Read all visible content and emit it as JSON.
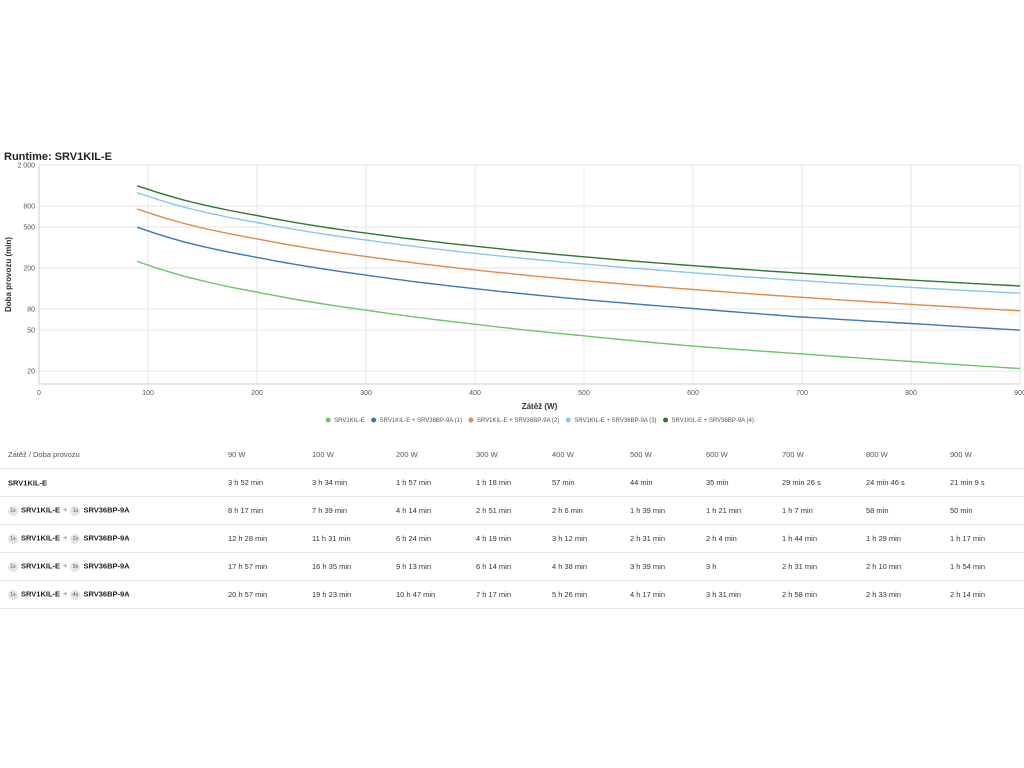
{
  "chart_title": "Runtime: SRV1KIL-E",
  "chart_data": {
    "type": "line",
    "title": "Runtime: SRV1KIL-E",
    "xlabel": "Zátěž (W)",
    "ylabel": "Doba provozu (min)",
    "xlim": [
      0,
      900
    ],
    "ylim": [
      15,
      2000
    ],
    "yscale": "log",
    "x_ticks": [
      "0",
      "100",
      "200",
      "300",
      "400",
      "500",
      "600",
      "700",
      "800",
      "900"
    ],
    "y_ticks": [
      "2 000",
      "800",
      "500",
      "200",
      "80",
      "50",
      "20"
    ],
    "grid": true,
    "legend_position": "bottom",
    "x": [
      90,
      100,
      200,
      300,
      400,
      500,
      600,
      700,
      800,
      900
    ],
    "series": [
      {
        "name": "SRV1KIL-E",
        "color": "#6cc566",
        "values": [
          232,
          214,
          117,
          78,
          57,
          44,
          35,
          29.4,
          24.8,
          21.2
        ]
      },
      {
        "name": "SRV1KIL-E + SRV36BP-9A (1)",
        "color": "#3a78b8",
        "values": [
          497,
          459,
          254,
          171,
          126,
          99,
          81,
          67,
          58,
          50
        ]
      },
      {
        "name": "SRV1KIL-E + SRV36BP-9A (2)",
        "color": "#e08a4c",
        "values": [
          748,
          691,
          384,
          259,
          192,
          151,
          124,
          104,
          89,
          77
        ]
      },
      {
        "name": "SRV1KIL-E + SRV36BP-9A (3)",
        "color": "#88c8ea",
        "values": [
          1077,
          995,
          553,
          374,
          278,
          219,
          180,
          151,
          130,
          114
        ]
      },
      {
        "name": "SRV1KIL-E + SRV36BP-9A (4)",
        "color": "#2c7a2c",
        "values": [
          1257,
          1163,
          647,
          437,
          326,
          257,
          211,
          178,
          153,
          134
        ]
      }
    ]
  },
  "table": {
    "header_label": "Zátěž / Doba provozu",
    "loads": [
      "90 W",
      "100 W",
      "200 W",
      "300 W",
      "400 W",
      "500 W",
      "600 W",
      "700 W",
      "800 W",
      "900 W"
    ],
    "rows": [
      {
        "parts": [
          {
            "model": "SRV1KIL-E"
          }
        ],
        "cells": [
          "3 h 52 min",
          "3 h 34 min",
          "1 h 57 min",
          "1 h 18 min",
          "57 min",
          "44 min",
          "35 min",
          "29 min 26 s",
          "24 min 46 s",
          "21 min 9 s"
        ]
      },
      {
        "parts": [
          {
            "qty": "1x",
            "model": "SRV1KIL-E"
          },
          {
            "qty": "1x",
            "model": "SRV36BP-9A"
          }
        ],
        "cells": [
          "8 h 17 min",
          "7 h 39 min",
          "4 h 14 min",
          "2 h 51 min",
          "2 h 6 min",
          "1 h 39 min",
          "1 h 21 min",
          "1 h 7 min",
          "58 min",
          "50 min"
        ]
      },
      {
        "parts": [
          {
            "qty": "1x",
            "model": "SRV1KIL-E"
          },
          {
            "qty": "2x",
            "model": "SRV36BP-9A"
          }
        ],
        "cells": [
          "12 h 28 min",
          "11 h 31 min",
          "6 h 24 min",
          "4 h 19 min",
          "3 h 12 min",
          "2 h 31 min",
          "2 h 4 min",
          "1 h 44 min",
          "1 h 29 min",
          "1 h 17 min"
        ]
      },
      {
        "parts": [
          {
            "qty": "1x",
            "model": "SRV1KIL-E"
          },
          {
            "qty": "3x",
            "model": "SRV36BP-9A"
          }
        ],
        "cells": [
          "17 h 57 min",
          "16 h 35 min",
          "9 h 13 min",
          "6 h 14 min",
          "4 h 38 min",
          "3 h 39 min",
          "3 h",
          "2 h 31 min",
          "2 h 10 min",
          "1 h 54 min"
        ]
      },
      {
        "parts": [
          {
            "qty": "1x",
            "model": "SRV1KIL-E"
          },
          {
            "qty": "4x",
            "model": "SRV36BP-9A"
          }
        ],
        "cells": [
          "20 h 57 min",
          "19 h 23 min",
          "10 h 47 min",
          "7 h 17 min",
          "5 h 26 min",
          "4 h 17 min",
          "3 h 31 min",
          "2 h 58 min",
          "2 h 33 min",
          "2 h 14 min"
        ]
      }
    ]
  }
}
